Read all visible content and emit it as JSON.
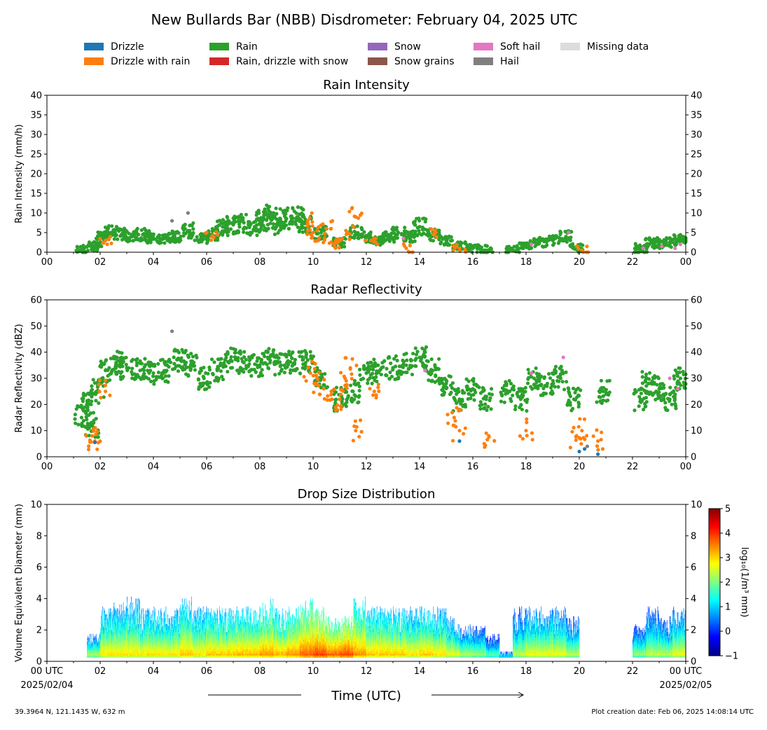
{
  "title": "New Bullards Bar (NBB) Disdrometer: February 04, 2025 UTC",
  "legend": [
    {
      "label": "Drizzle",
      "color": "#1f77b4"
    },
    {
      "label": "Drizzle with rain",
      "color": "#ff7f0e"
    },
    {
      "label": "Rain",
      "color": "#2ca02c"
    },
    {
      "label": "Rain, drizzle with snow",
      "color": "#d62728"
    },
    {
      "label": "Snow",
      "color": "#9467bd"
    },
    {
      "label": "Snow grains",
      "color": "#8c564b"
    },
    {
      "label": "Soft hail",
      "color": "#e377c2"
    },
    {
      "label": "Hail",
      "color": "#7f7f7f"
    },
    {
      "label": "Missing data",
      "color": "#dcdcdc"
    }
  ],
  "footer": {
    "location": "39.3964 N, 121.1435 W, 632 m",
    "created": "Plot creation date: Feb 06, 2025 14:08:14 UTC"
  },
  "time_axis": {
    "label": "Time (UTC)",
    "ticks": [
      "00",
      "02",
      "04",
      "06",
      "08",
      "10",
      "12",
      "14",
      "16",
      "18",
      "20",
      "22",
      "00"
    ],
    "bottom_ticks": [
      "00 UTC",
      "02",
      "04",
      "06",
      "08",
      "10",
      "12",
      "14",
      "16",
      "18",
      "20",
      "22",
      "00 UTC"
    ],
    "start_date": "2025/02/04",
    "end_date": "2025/02/05"
  },
  "chart_data": [
    {
      "type": "scatter",
      "title": "Rain Intensity",
      "ylabel": "Rain Intensity (mm/h)",
      "xlim": [
        0,
        24
      ],
      "ylim": [
        0,
        40
      ],
      "yticks": [
        0,
        5,
        10,
        15,
        20,
        25,
        30,
        35,
        40
      ],
      "series": [
        {
          "name": "Rain",
          "color": "#2ca02c",
          "x": [
            1.3,
            1.8,
            2.1,
            2.4,
            2.8,
            3.2,
            3.6,
            4.0,
            4.4,
            4.8,
            5.3,
            5.8,
            6.2,
            6.6,
            7.0,
            7.4,
            7.8,
            8.1,
            8.4,
            8.7,
            9.0,
            9.4,
            9.7,
            10.3,
            11.0,
            11.6,
            12.0,
            12.4,
            12.8,
            13.2,
            13.6,
            14.0,
            14.5,
            15.0,
            15.5,
            16.0,
            16.5,
            17.5,
            18.0,
            18.5,
            19.0,
            19.5,
            19.9,
            22.3,
            22.7,
            23.0,
            23.4,
            23.8
          ],
          "y": [
            0.5,
            1.5,
            4.0,
            5.0,
            4.5,
            4.0,
            4.5,
            3.5,
            3.5,
            4.0,
            5.5,
            3.5,
            4.5,
            6.5,
            7.0,
            7.5,
            6.5,
            8.0,
            9.0,
            7.0,
            8.5,
            9.0,
            7.5,
            5.0,
            2.5,
            5.0,
            4.0,
            3.0,
            4.0,
            5.0,
            4.0,
            6.5,
            4.5,
            3.0,
            1.5,
            1.0,
            0.5,
            0.5,
            2.0,
            2.5,
            3.0,
            4.0,
            1.0,
            1.0,
            2.5,
            2.0,
            2.5,
            3.5
          ]
        },
        {
          "name": "Drizzle with rain",
          "color": "#ff7f0e",
          "x": [
            2.2,
            6.2,
            9.8,
            10.0,
            10.2,
            10.5,
            10.8,
            11.0,
            11.3,
            11.6,
            12.2,
            13.5,
            14.6,
            15.5,
            20.1
          ],
          "y": [
            3.0,
            4.0,
            8.0,
            5.0,
            3.0,
            6.0,
            2.0,
            3.0,
            5.0,
            9.0,
            3.0,
            1.0,
            5.0,
            1.0,
            0.5
          ]
        },
        {
          "name": "Soft hail",
          "color": "#e377c2",
          "x": [
            13.4,
            18.2,
            19.6,
            22.4,
            23.1,
            23.6,
            23.8
          ],
          "y": [
            3.5,
            2.0,
            5.0,
            1.0,
            1.5,
            1.0,
            2.0
          ]
        },
        {
          "name": "Hail",
          "color": "#7f7f7f",
          "x": [
            4.7,
            5.3
          ],
          "y": [
            8.0,
            10.0
          ]
        }
      ]
    },
    {
      "type": "scatter",
      "title": "Radar Reflectivity",
      "ylabel": "Radar Reflectivity (dBZ)",
      "xlim": [
        0,
        24
      ],
      "ylim": [
        0,
        60
      ],
      "yticks": [
        0,
        10,
        20,
        30,
        40,
        50,
        60
      ],
      "series": [
        {
          "name": "Rain",
          "color": "#2ca02c",
          "x": [
            1.3,
            1.5,
            1.7,
            1.9,
            2.2,
            2.6,
            3.0,
            3.5,
            4.0,
            4.5,
            5.0,
            5.4,
            5.9,
            6.4,
            6.9,
            7.4,
            7.9,
            8.3,
            8.8,
            9.3,
            9.8,
            10.3,
            11.0,
            11.5,
            12.0,
            12.5,
            13.0,
            13.5,
            14.0,
            14.5,
            15.0,
            15.5,
            16.0,
            16.5,
            17.3,
            17.8,
            18.3,
            18.8,
            19.3,
            19.8,
            20.9,
            22.3,
            22.6,
            23.0,
            23.4,
            23.8
          ],
          "y": [
            15.0,
            20.0,
            12.0,
            25.0,
            33.0,
            36.0,
            34.0,
            33.0,
            32.0,
            33.0,
            37.0,
            35.0,
            30.0,
            33.0,
            37.0,
            36.0,
            35.0,
            38.0,
            35.0,
            36.0,
            37.0,
            30.0,
            22.0,
            25.0,
            32.0,
            33.0,
            34.0,
            35.0,
            38.0,
            33.0,
            28.0,
            22.0,
            26.0,
            22.0,
            25.0,
            22.0,
            30.0,
            28.0,
            30.0,
            22.0,
            25.0,
            22.0,
            28.0,
            26.0,
            22.0,
            30.0
          ]
        },
        {
          "name": "Drizzle with rain",
          "color": "#ff7f0e",
          "x": [
            1.7,
            1.8,
            2.2,
            9.9,
            10.1,
            10.4,
            10.7,
            11.0,
            11.2,
            11.4,
            11.6,
            12.3,
            15.3,
            15.5,
            16.6,
            18.0,
            19.9,
            20.1,
            20.7
          ],
          "y": [
            8.0,
            6.0,
            25.0,
            32.0,
            28.0,
            26.0,
            22.0,
            22.0,
            30.0,
            34.0,
            10.0,
            25.0,
            15.0,
            10.0,
            8.0,
            10.0,
            8.0,
            10.0,
            6.0
          ]
        },
        {
          "name": "Drizzle",
          "color": "#1f77b4",
          "x": [
            1.8,
            15.5,
            20.0,
            20.2,
            20.7
          ],
          "y": [
            5.5,
            6.0,
            2.0,
            3.0,
            1.0
          ]
        },
        {
          "name": "Soft hail",
          "color": "#e377c2",
          "x": [
            14.2,
            18.2,
            19.4,
            23.4,
            23.7
          ],
          "y": [
            33.0,
            32.0,
            38.0,
            30.0,
            26.0
          ]
        },
        {
          "name": "Hail",
          "color": "#7f7f7f",
          "x": [
            4.7,
            20.3
          ],
          "y": [
            48.0,
            4.0
          ]
        }
      ]
    },
    {
      "type": "heatmap",
      "title": "Drop Size Distribution",
      "ylabel": "Volume Equivalent Diameter (mm)",
      "xlim": [
        0,
        24
      ],
      "ylim": [
        0,
        10
      ],
      "yticks": [
        0,
        2,
        4,
        6,
        8,
        10
      ],
      "colorbar": {
        "label": "log₁₀(1/m³ mm)",
        "range": [
          -1,
          5
        ],
        "ticks": [
          -1,
          0,
          1,
          2,
          3,
          4,
          5
        ],
        "colormap": "jet"
      },
      "columns": {
        "x": [
          1.75,
          2.25,
          2.75,
          3.25,
          3.75,
          4.25,
          4.75,
          5.25,
          5.75,
          6.25,
          6.75,
          7.25,
          7.75,
          8.25,
          8.75,
          9.25,
          9.75,
          10.25,
          10.75,
          11.25,
          11.75,
          12.25,
          12.75,
          13.25,
          13.75,
          14.25,
          14.75,
          15.25,
          15.75,
          16.25,
          16.75,
          17.25,
          17.75,
          18.25,
          18.75,
          19.25,
          19.75,
          22.25,
          22.75,
          23.25,
          23.75
        ],
        "max_diameter": [
          1.5,
          3.0,
          3.5,
          3.5,
          3.0,
          3.0,
          3.0,
          3.5,
          3.0,
          3.0,
          3.0,
          3.0,
          3.0,
          3.5,
          3.0,
          3.0,
          3.5,
          3.0,
          2.5,
          2.5,
          3.5,
          3.0,
          3.0,
          3.0,
          3.0,
          3.0,
          3.0,
          2.5,
          2.0,
          2.0,
          1.5,
          0.5,
          3.0,
          3.0,
          3.0,
          3.0,
          2.5,
          2.0,
          3.0,
          2.5,
          3.0
        ],
        "peak_log10": [
          2.5,
          3.0,
          3.0,
          3.0,
          3.0,
          3.0,
          3.0,
          3.2,
          3.0,
          3.2,
          3.2,
          3.3,
          3.3,
          3.5,
          3.3,
          3.5,
          3.8,
          4.0,
          3.8,
          4.0,
          3.5,
          3.2,
          3.2,
          3.2,
          3.0,
          3.2,
          3.0,
          2.8,
          2.5,
          2.3,
          2.0,
          1.5,
          2.5,
          2.8,
          2.8,
          2.8,
          2.5,
          2.3,
          2.5,
          2.5,
          2.8
        ]
      }
    }
  ]
}
